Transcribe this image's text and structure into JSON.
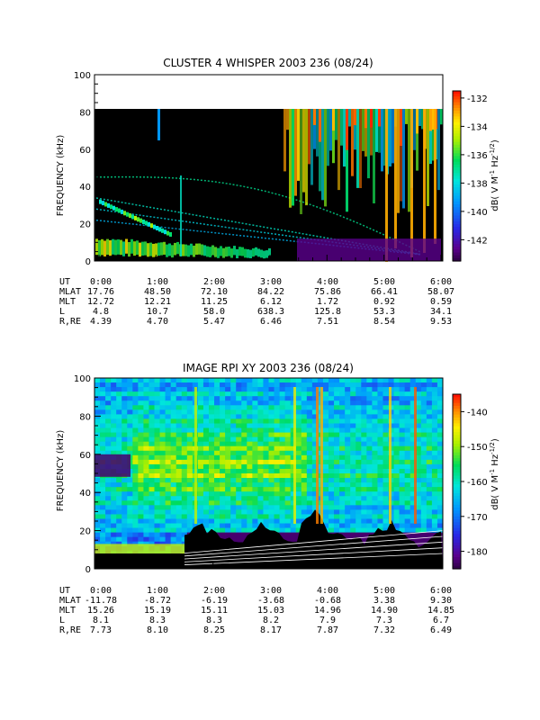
{
  "chart_data": [
    {
      "type": "heatmap",
      "title": "CLUSTER 4 WHISPER 2003 236 (08/24)",
      "ylabel": "FREQUENCY (kHz)",
      "ylim": [
        0,
        100
      ],
      "y_ticks": [
        "0",
        "20",
        "40",
        "60",
        "80",
        "100"
      ],
      "colorbar": {
        "label": "dB( V M",
        "label_sup1": "-1",
        "label_mid": " Hz",
        "label_sup2": "-1/2",
        "label_end": ")",
        "range": [
          -143.5,
          -131.5
        ],
        "ticks": [
          "-132",
          "-134",
          "-136",
          "-138",
          "-140",
          "-142"
        ],
        "tick_values": [
          -132,
          -134,
          -136,
          -138,
          -140,
          -142
        ]
      },
      "data_upper_freq_khz": 80,
      "x_axis_rows": [
        {
          "label": "UT",
          "values": [
            "0:00",
            "1:00",
            "2:00",
            "3:00",
            "4:00",
            "5:00",
            "6:00"
          ]
        },
        {
          "label": "MLAT",
          "values": [
            "17.76",
            "48.50",
            "72.10",
            "84.22",
            "75.86",
            "66.41",
            "58.07"
          ]
        },
        {
          "label": "MLT",
          "values": [
            "12.72",
            "12.21",
            "11.25",
            "6.12",
            "1.72",
            "0.92",
            "0.59"
          ]
        },
        {
          "label": "L",
          "values": [
            "4.8",
            "10.7",
            "58.0",
            "638.3",
            "125.8",
            "53.3",
            "34.1"
          ]
        },
        {
          "label": "R,RE",
          "values": [
            "4.39",
            "4.70",
            "5.47",
            "6.46",
            "7.51",
            "8.54",
            "9.53"
          ]
        }
      ]
    },
    {
      "type": "heatmap",
      "title": "IMAGE RPI XY 2003 236 (08/24)",
      "ylabel": "FREQUENCY (kHz)",
      "ylim": [
        0,
        100
      ],
      "y_ticks": [
        "0",
        "20",
        "40",
        "60",
        "80",
        "100"
      ],
      "colorbar": {
        "label": "dB( V M",
        "label_sup1": "-1",
        "label_mid": " Hz",
        "label_sup2": "-1/2",
        "label_end": ")",
        "range": [
          -185,
          -135
        ],
        "ticks": [
          "-140",
          "-150",
          "-160",
          "-170",
          "-180"
        ],
        "tick_values": [
          -140,
          -150,
          -160,
          -170,
          -180
        ]
      },
      "x_axis_rows": [
        {
          "label": "UT",
          "values": [
            "0:00",
            "1:00",
            "2:00",
            "3:00",
            "4:00",
            "5:00",
            "6:00"
          ]
        },
        {
          "label": "MLAT",
          "values": [
            "-11.78",
            "-8.72",
            "-6.19",
            "-3.68",
            "-0.68",
            "3.38",
            "9.30"
          ]
        },
        {
          "label": "MLT",
          "values": [
            "15.26",
            "15.19",
            "15.11",
            "15.03",
            "14.96",
            "14.90",
            "14.85"
          ]
        },
        {
          "label": "L",
          "values": [
            "8.1",
            "8.3",
            "8.3",
            "8.2",
            "7.9",
            "7.3",
            "6.7"
          ]
        },
        {
          "label": "R,RE",
          "values": [
            "7.73",
            "8.10",
            "8.25",
            "8.17",
            "7.87",
            "7.32",
            "6.49"
          ]
        }
      ]
    }
  ]
}
